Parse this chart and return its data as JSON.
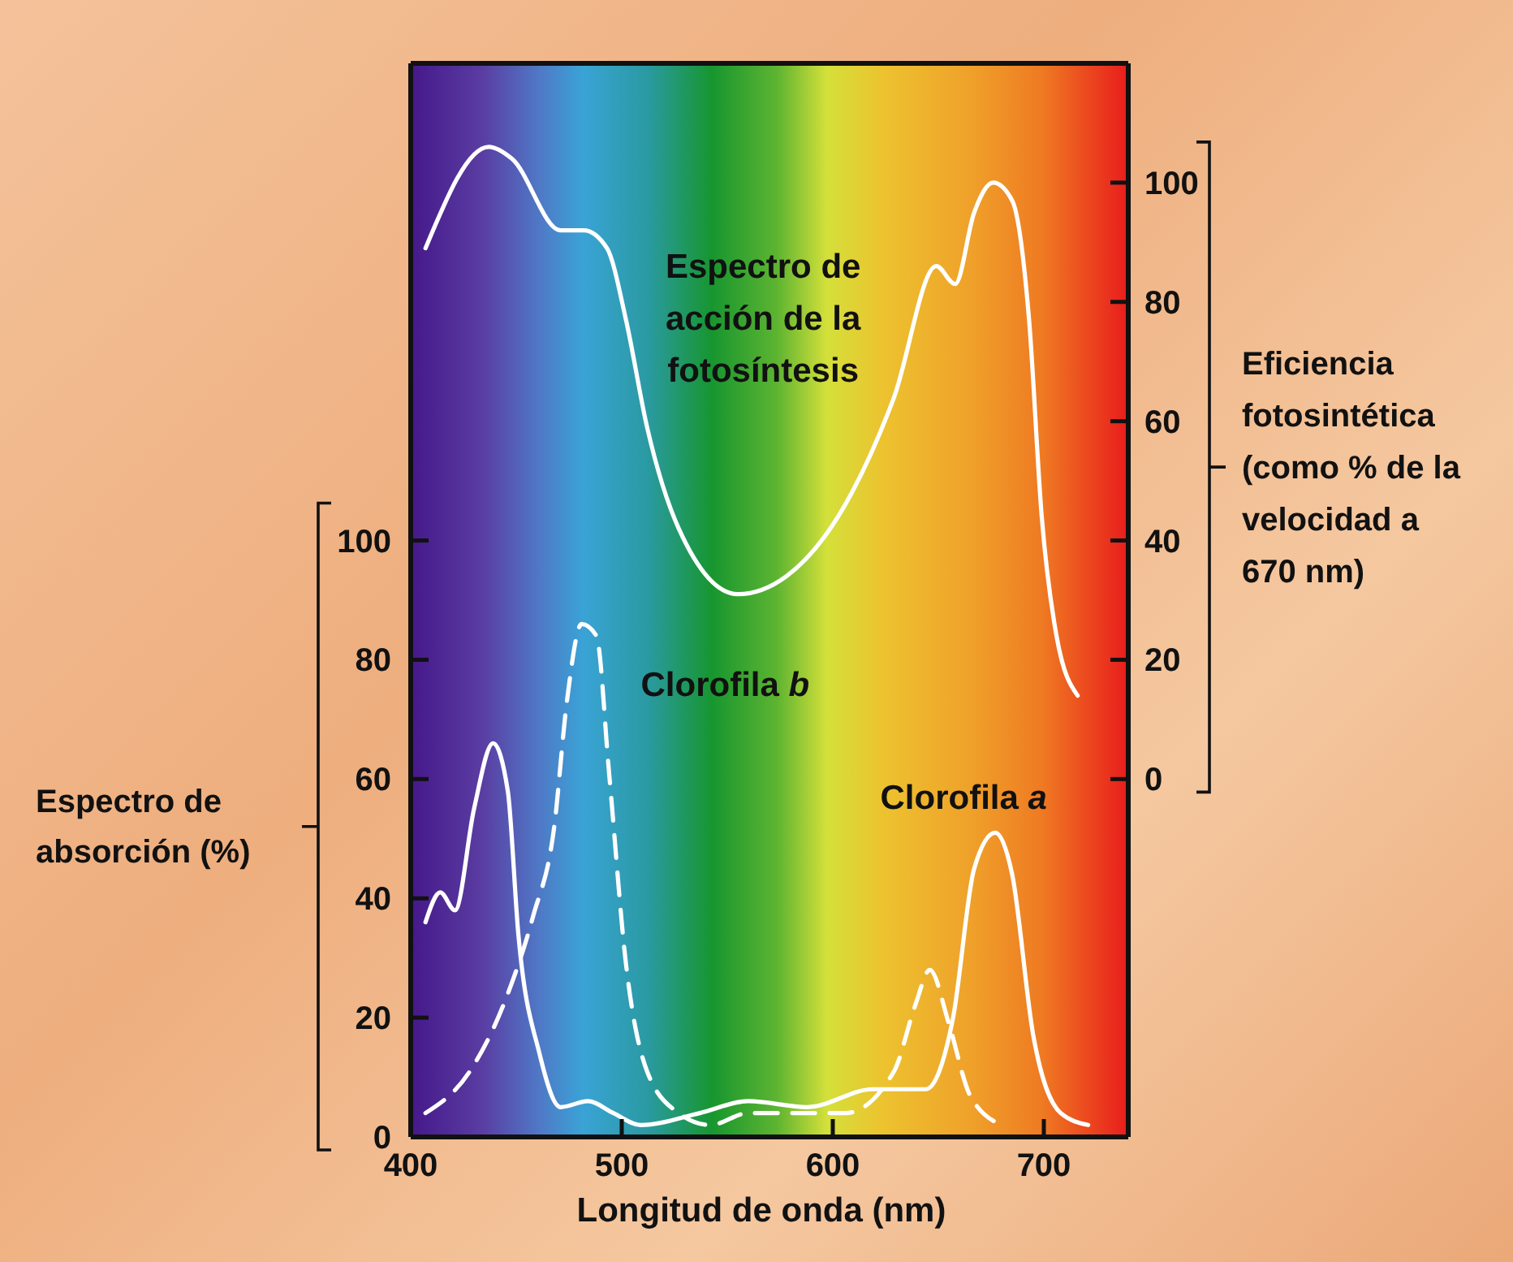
{
  "chart_data": {
    "type": "line",
    "xlabel": "Longitud de onda (nm)",
    "ylabel": "Espectro de absorción (%)",
    "y2label": "Eficiencia fotosintética (como % de la velocidad a 670 nm)",
    "xlim": [
      400,
      740
    ],
    "xticks": [
      400,
      500,
      600,
      700
    ],
    "ylim": [
      0,
      180
    ],
    "yticks": [
      0,
      20,
      40,
      60,
      80,
      100
    ],
    "y2lim": [
      -60,
      120
    ],
    "y2ticks": [
      0,
      20,
      40,
      60,
      80,
      100
    ],
    "marker": "none",
    "series": [
      {
        "name": "Espectro de acción de la fotosíntesis",
        "color": "#ffffff",
        "axis": "y2",
        "line_style": "solid",
        "x": [
          407,
          437,
          448,
          471,
          482,
          493,
          502,
          512,
          527,
          555,
          578,
          609,
          629,
          649,
          658,
          667,
          676,
          685,
          693,
          699,
          706,
          716
        ],
        "values": [
          89,
          106,
          104,
          92,
          92,
          89,
          77,
          59,
          42,
          31,
          34,
          48,
          64,
          86,
          83,
          95,
          100,
          97,
          77,
          44,
          24,
          14
        ]
      },
      {
        "name": "Clorofila a",
        "color": "#ffffff",
        "line_style": "solid",
        "x": [
          407,
          414,
          421,
          430,
          439,
          446,
          451,
          461,
          471,
          484,
          496,
          509,
          537,
          560,
          588,
          619,
          644,
          657,
          667,
          677,
          685,
          695,
          708,
          721
        ],
        "values": [
          36,
          41,
          38,
          55,
          66,
          58,
          34,
          14,
          5,
          6,
          4,
          2,
          4,
          6,
          5,
          8,
          8,
          20,
          45,
          51,
          44,
          17,
          4,
          2
        ]
      },
      {
        "name": "Clorofila b",
        "color": "#ffffff",
        "line_style": "dashed",
        "x": [
          407,
          428,
          446,
          458,
          468,
          474,
          481,
          488,
          494,
          502,
          512,
          527,
          542,
          560,
          578,
          606,
          629,
          639,
          646,
          655,
          665,
          680
        ],
        "values": [
          4,
          11,
          24,
          37,
          52,
          73,
          86,
          84,
          61,
          29,
          11,
          4,
          2,
          4,
          4,
          4,
          11,
          22,
          28,
          19,
          7,
          2
        ]
      }
    ]
  }
}
